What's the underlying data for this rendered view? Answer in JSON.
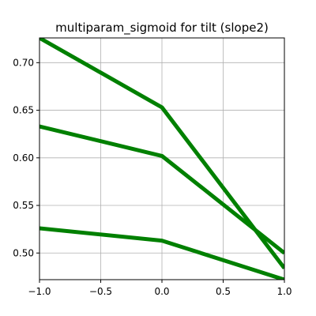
{
  "chart_data": {
    "type": "line",
    "title": "multiparam_sigmoid for tilt (slope2)",
    "xlabel": "",
    "ylabel": "",
    "xlim": [
      -1.0,
      1.0
    ],
    "ylim": [
      0.472,
      0.726
    ],
    "grid": true,
    "x_ticks": [
      -1.0,
      -0.5,
      0.0,
      0.5,
      1.0
    ],
    "x_tick_labels": [
      "−1.0",
      "−0.5",
      "0.0",
      "0.5",
      "1.0"
    ],
    "y_ticks": [
      0.5,
      0.55,
      0.6,
      0.65,
      0.7
    ],
    "y_tick_labels": [
      "0.50",
      "0.55",
      "0.60",
      "0.65",
      "0.70"
    ],
    "series_color": "#008000",
    "series": [
      {
        "x": [
          -1.0,
          0.0,
          1.0
        ],
        "values": [
          0.726,
          0.653,
          0.484
        ]
      },
      {
        "x": [
          -1.0,
          0.0,
          1.0
        ],
        "values": [
          0.633,
          0.602,
          0.5
        ]
      },
      {
        "x": [
          -1.0,
          0.0,
          1.0
        ],
        "values": [
          0.526,
          0.513,
          0.472
        ]
      }
    ]
  }
}
